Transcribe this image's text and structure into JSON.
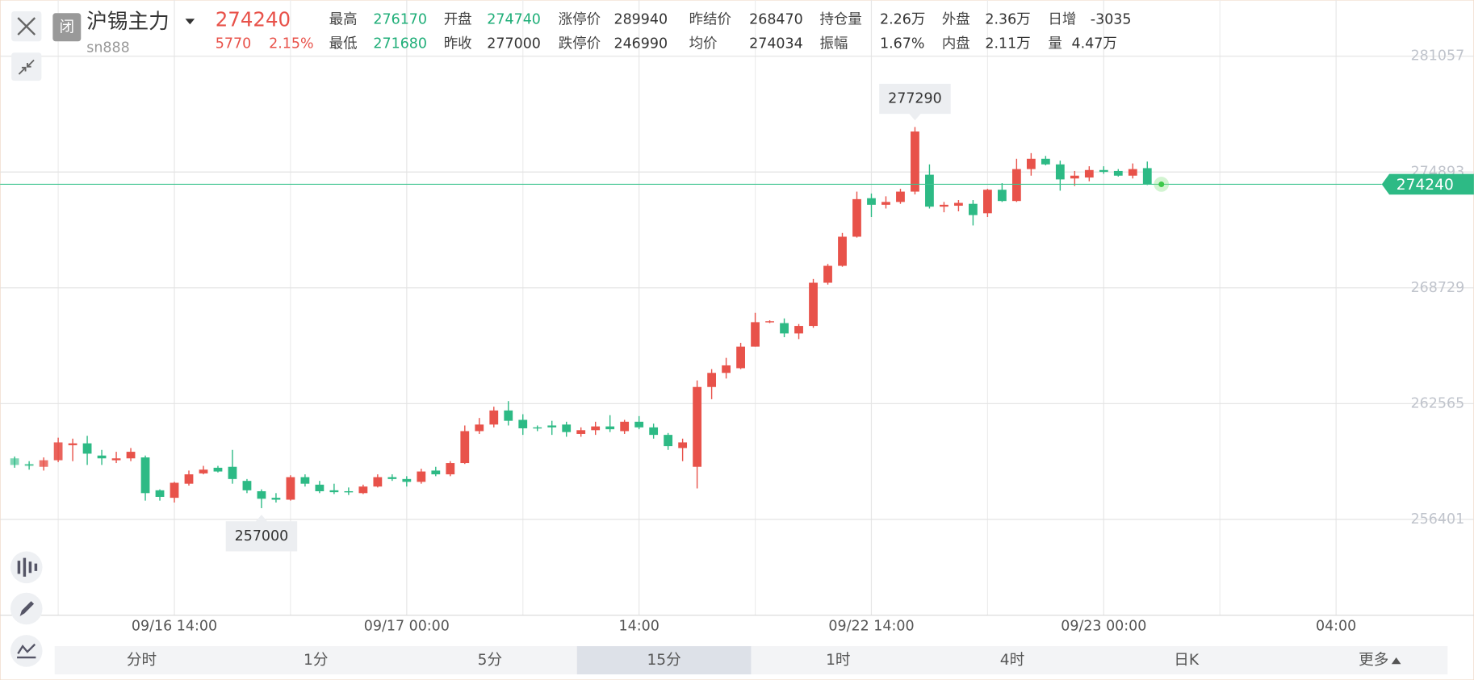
{
  "header": {
    "badge": "闭",
    "name": "沪锡主力",
    "code": "sn888",
    "price": "274240",
    "change": "5770",
    "change_pct": "2.15%",
    "stats": [
      [
        {
          "label": "最高",
          "value": "276170",
          "color": "#1fae78"
        },
        {
          "label": "开盘",
          "value": "274740",
          "color": "#1fae78"
        },
        {
          "label": "涨停价",
          "value": "289940",
          "color": "#333333"
        },
        {
          "label": "昨结价",
          "value": "268470",
          "color": "#333333"
        },
        {
          "label": "持仓量",
          "value": "2.26万",
          "color": "#333333"
        },
        {
          "label": "外盘",
          "value": "2.36万",
          "color": "#333333"
        },
        {
          "label": "日增",
          "value": "-3035",
          "color": "#333333"
        }
      ],
      [
        {
          "label": "最低",
          "value": "271680",
          "color": "#1fae78"
        },
        {
          "label": "昨收",
          "value": "277000",
          "color": "#333333"
        },
        {
          "label": "跌停价",
          "value": "246990",
          "color": "#333333"
        },
        {
          "label": "均价",
          "value": "274034",
          "color": "#333333"
        },
        {
          "label": "振幅",
          "value": "1.67%",
          "color": "#333333"
        },
        {
          "label": "内盘",
          "value": "2.11万",
          "color": "#333333"
        },
        {
          "label": "量",
          "value": "4.47万",
          "color": "#333333"
        }
      ]
    ]
  },
  "chart_data": {
    "type": "candlestick",
    "open": [
      259650,
      259350,
      259200,
      259550,
      260350,
      260450,
      259800,
      259550,
      259650,
      259700,
      257950,
      257550,
      258300,
      258850,
      259150,
      259200,
      258450,
      257900,
      257550,
      257450,
      258650,
      258250,
      257950,
      257900,
      257800,
      258150,
      258650,
      258550,
      258400,
      259000,
      258800,
      259400,
      261100,
      261450,
      262200,
      261700,
      261300,
      261400,
      261450,
      260950,
      261150,
      261350,
      261100,
      261600,
      261300,
      260900,
      260200,
      259200,
      263450,
      264200,
      264450,
      265600,
      266900,
      266850,
      266300,
      266700,
      269000,
      269900,
      271450,
      273500,
      273150,
      273300,
      273850,
      274750,
      273050,
      273100,
      273200,
      272700,
      273950,
      273350,
      275050,
      275600,
      275300,
      274550,
      274600,
      275000,
      274950,
      274700,
      275100
    ],
    "high": [
      259750,
      259500,
      259700,
      260750,
      260700,
      260850,
      260100,
      260000,
      260200,
      259800,
      258000,
      258400,
      259000,
      259250,
      259250,
      260100,
      258550,
      258000,
      257800,
      258750,
      258800,
      258450,
      258300,
      258100,
      258250,
      258800,
      258800,
      258700,
      259100,
      259200,
      259500,
      261400,
      261800,
      262400,
      262700,
      262000,
      261400,
      261650,
      261600,
      261300,
      261600,
      261950,
      261700,
      261900,
      261500,
      261000,
      260700,
      263800,
      264400,
      265000,
      265800,
      267400,
      267000,
      267100,
      266800,
      269200,
      270000,
      271650,
      273850,
      273750,
      273600,
      274000,
      277290,
      275300,
      273300,
      273400,
      273400,
      274000,
      274300,
      275600,
      275900,
      275750,
      275500,
      274950,
      275200,
      275200,
      275050,
      275350,
      275450
    ],
    "low": [
      259150,
      259050,
      259000,
      259450,
      259500,
      259300,
      259300,
      259400,
      259500,
      257400,
      257400,
      257300,
      258200,
      258800,
      258900,
      258300,
      257800,
      257000,
      257300,
      257400,
      258150,
      257800,
      257750,
      257700,
      257750,
      258100,
      258450,
      258150,
      258300,
      258700,
      258700,
      259350,
      260950,
      261300,
      261400,
      260900,
      261100,
      260900,
      260800,
      260800,
      260900,
      261050,
      260950,
      261200,
      260700,
      260100,
      259500,
      258050,
      262800,
      263900,
      264400,
      265600,
      266850,
      266100,
      266000,
      266600,
      268900,
      269850,
      271400,
      272500,
      272950,
      273200,
      273700,
      272950,
      272750,
      272800,
      272050,
      272500,
      273300,
      273300,
      274700,
      275250,
      273900,
      274150,
      274400,
      274800,
      274650,
      274550,
      274200
    ],
    "close": [
      259300,
      259250,
      259550,
      260500,
      260450,
      259900,
      259650,
      259650,
      260000,
      257800,
      257600,
      258350,
      258800,
      259050,
      258950,
      258550,
      257950,
      257500,
      257450,
      258650,
      258300,
      257900,
      257850,
      257850,
      258150,
      258650,
      258550,
      258400,
      258950,
      258800,
      259400,
      261100,
      261450,
      262200,
      261650,
      261250,
      261250,
      261300,
      261050,
      261150,
      261350,
      261200,
      261600,
      261300,
      260900,
      260300,
      260500,
      263450,
      264200,
      264600,
      265600,
      266900,
      266950,
      266300,
      266700,
      269000,
      269900,
      271450,
      273450,
      273150,
      273300,
      273850,
      277050,
      273050,
      273150,
      273250,
      272600,
      273950,
      273350,
      275050,
      275600,
      275300,
      274500,
      274700,
      275000,
      274900,
      274700,
      275050,
      274240
    ],
    "up_color": "#e8524a",
    "down_color": "#2dba85",
    "xlim": [
      -1,
      93.5
    ],
    "xticks": [
      {
        "value": 11,
        "label": "09/16 14:00"
      },
      {
        "value": 27,
        "label": "09/17 00:00"
      },
      {
        "value": 43,
        "label": "14:00"
      },
      {
        "value": 59,
        "label": "09/22 14:00"
      },
      {
        "value": 75,
        "label": "09/23 00:00"
      },
      {
        "value": 91,
        "label": "04:00"
      }
    ],
    "ylim": [
      251301,
      284051
    ],
    "yticks": [
      256401,
      262565,
      268729,
      274893,
      281057
    ],
    "grid": true,
    "last_price": 274240,
    "max_label": 277290,
    "min_label": 257000
  },
  "tabs": [
    "分时",
    "1分",
    "5分",
    "15分",
    "1时",
    "4时",
    "日K",
    "更多"
  ],
  "active_tab": 3
}
